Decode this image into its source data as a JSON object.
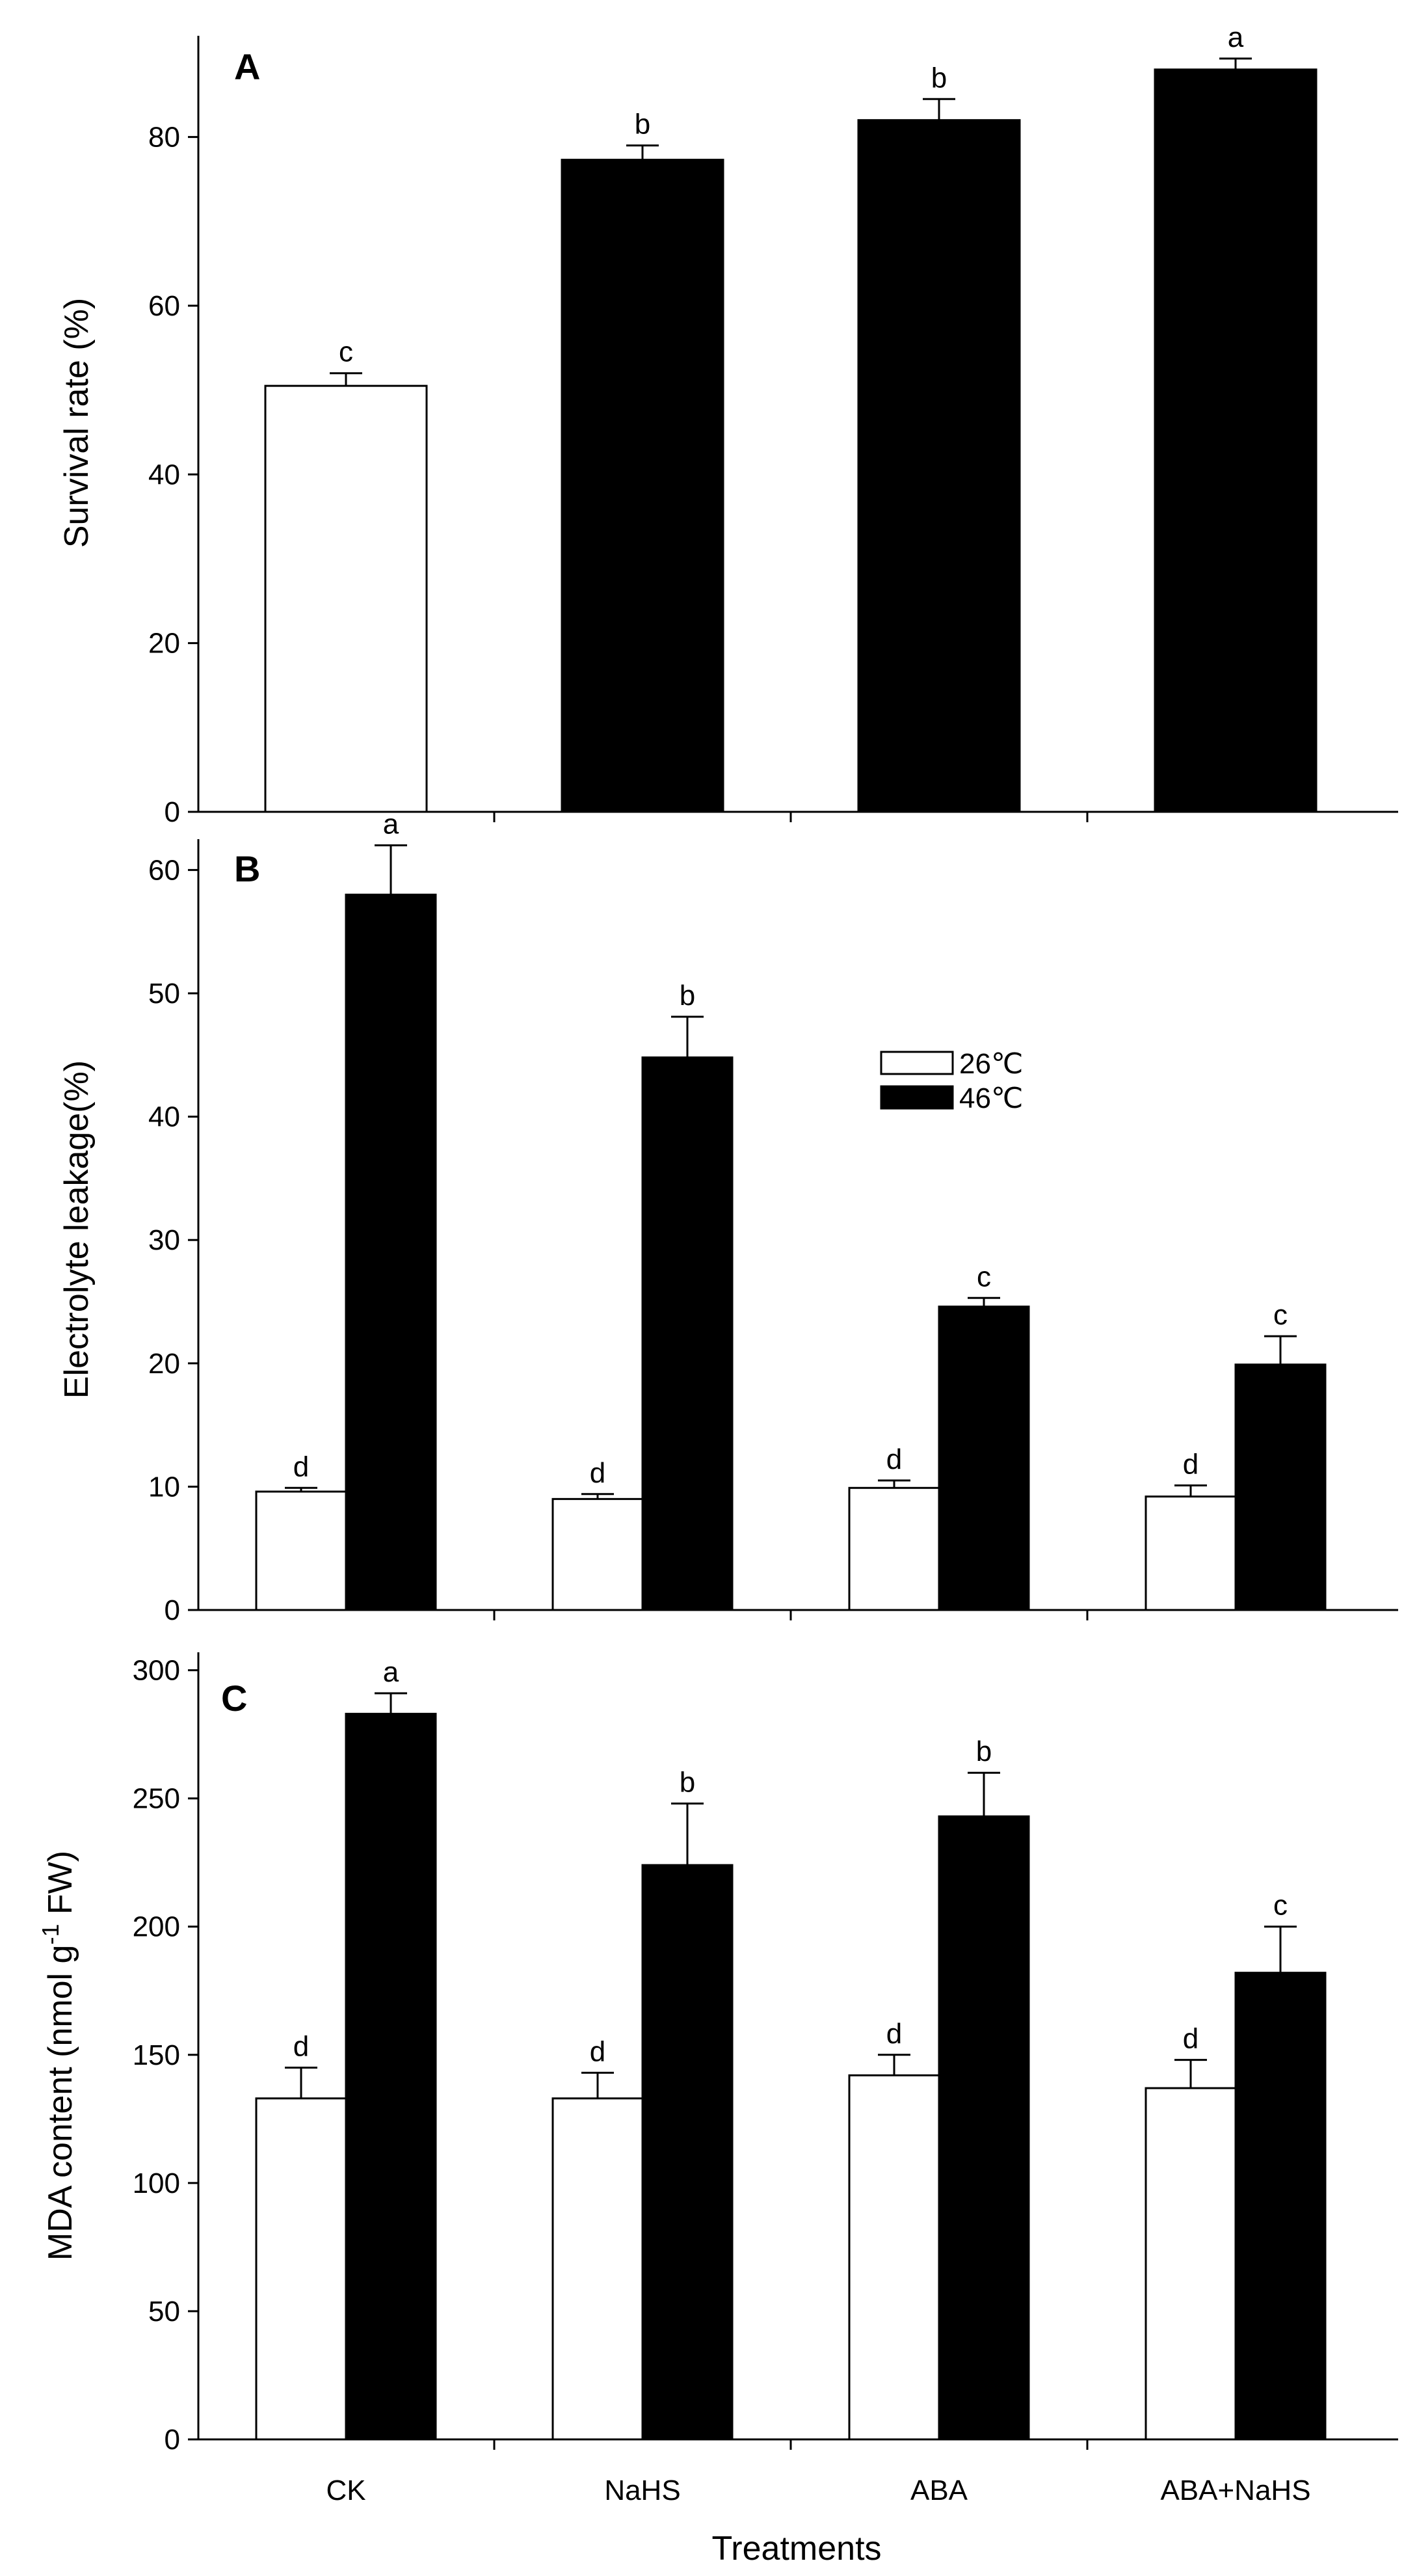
{
  "categories": [
    "CK",
    "NaHS",
    "ABA",
    "ABA+NaHS"
  ],
  "xlabel": "Treatments",
  "colors": {
    "s26": "#ffffff",
    "s46": "#000000",
    "axis": "#000000"
  },
  "chart_data": [
    {
      "type": "bar",
      "panel": "A",
      "title": "",
      "ylabel": "Survival rate (%)",
      "ylim": [
        0,
        92
      ],
      "yticks": [
        0,
        20,
        40,
        60,
        80
      ],
      "categories": [
        "CK",
        "NaHS",
        "ABA",
        "ABA+NaHS"
      ],
      "series": [
        {
          "name": "single",
          "values": [
            50.5,
            77.3,
            82.0,
            88.0
          ],
          "errors": [
            1.5,
            1.7,
            2.5,
            1.3
          ],
          "labels": [
            "c",
            "b",
            "b",
            "a"
          ],
          "fills": [
            "#ffffff",
            "#000000",
            "#000000",
            "#000000"
          ]
        }
      ]
    },
    {
      "type": "bar",
      "panel": "B",
      "title": "",
      "ylabel": "Electrolyte leakage(%)",
      "ylim": [
        0,
        62.5
      ],
      "yticks": [
        0,
        10,
        20,
        30,
        40,
        50,
        60
      ],
      "categories": [
        "CK",
        "NaHS",
        "ABA",
        "ABA+NaHS"
      ],
      "legend": {
        "position": "center-right",
        "entries": [
          "26℃",
          "46℃"
        ]
      },
      "series": [
        {
          "name": "26℃",
          "values": [
            9.6,
            9.0,
            9.9,
            9.2
          ],
          "errors": [
            0.3,
            0.4,
            0.6,
            0.9
          ],
          "labels": [
            "d",
            "d",
            "d",
            "d"
          ]
        },
        {
          "name": "46℃",
          "values": [
            58.0,
            44.8,
            24.6,
            19.9
          ],
          "errors": [
            4.0,
            3.3,
            0.7,
            2.3
          ],
          "labels": [
            "a",
            "b",
            "c",
            "c"
          ]
        }
      ]
    },
    {
      "type": "bar",
      "panel": "C",
      "title": "",
      "ylabel": "MDA content (nmol g",
      "ylabel_sup": "-1",
      "ylabel_tail": " FW)",
      "ylim": [
        0,
        307
      ],
      "yticks": [
        0,
        50,
        100,
        150,
        200,
        250,
        300
      ],
      "categories": [
        "CK",
        "NaHS",
        "ABA",
        "ABA+NaHS"
      ],
      "series": [
        {
          "name": "26℃",
          "values": [
            133,
            133,
            142,
            137
          ],
          "errors": [
            12,
            10,
            8,
            11
          ],
          "labels": [
            "d",
            "d",
            "d",
            "d"
          ]
        },
        {
          "name": "46℃",
          "values": [
            283,
            224,
            243,
            182
          ],
          "errors": [
            8,
            24,
            17,
            18
          ],
          "labels": [
            "a",
            "b",
            "b",
            "c"
          ]
        }
      ]
    }
  ]
}
